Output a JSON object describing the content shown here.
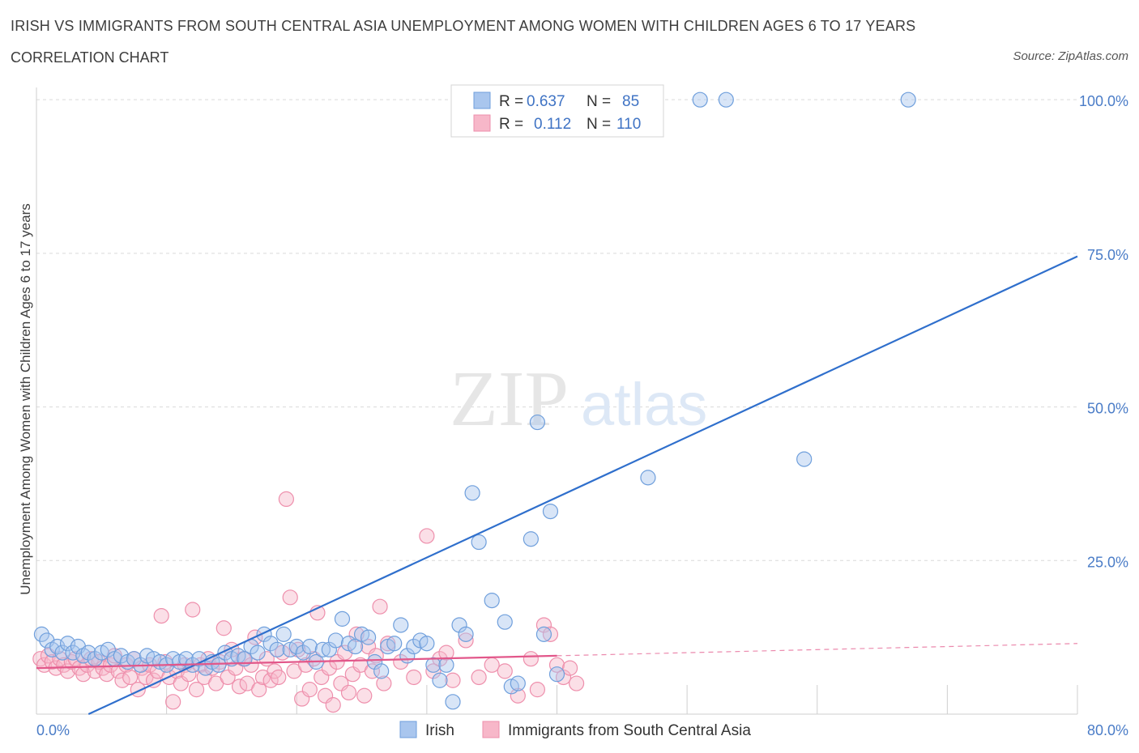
{
  "header": {
    "title": "IRISH VS IMMIGRANTS FROM SOUTH CENTRAL ASIA UNEMPLOYMENT AMONG WOMEN WITH CHILDREN AGES 6 TO 17 YEARS",
    "subtitle": "CORRELATION CHART",
    "source": "Source: ZipAtlas.com"
  },
  "watermark": {
    "zip": "ZIP",
    "atlas": "atlas"
  },
  "legend": {
    "rows": [
      {
        "r_label": "R =",
        "r_value": "0.637",
        "n_label": "N =",
        "n_value": "85"
      },
      {
        "r_label": "R =",
        "r_value": "0.112",
        "n_label": "N =",
        "n_value": "110"
      }
    ]
  },
  "colors": {
    "irish_fill": "#a9c6ee",
    "irish_stroke": "#6f9fdc",
    "irish_line": "#2f6fcc",
    "imm_fill": "#f7b7c9",
    "imm_stroke": "#ee8fac",
    "imm_line": "#e2578a",
    "grid": "#d9d9d9",
    "tick_text": "#4a7cc7"
  },
  "chart_data": {
    "type": "scatter",
    "title": "IRISH VS IMMIGRANTS FROM SOUTH CENTRAL ASIA UNEMPLOYMENT AMONG WOMEN WITH CHILDREN AGES 6 TO 17 YEARS",
    "subtitle": "CORRELATION CHART",
    "xlabel": "",
    "ylabel": "Unemployment Among Women with Children Ages 6 to 17 years",
    "xlim": [
      0,
      80
    ],
    "ylim": [
      0,
      102
    ],
    "x_tick_labels": [
      "0.0%",
      "80.0%"
    ],
    "y_tick_labels": [
      "100.0%",
      "75.0%",
      "50.0%",
      "25.0%"
    ],
    "y_ticks": [
      100,
      75,
      50,
      25
    ],
    "grid": true,
    "legend_position": "bottom",
    "series": [
      {
        "name": "Irish",
        "r": 0.637,
        "n": 85,
        "trend": {
          "x": [
            4,
            80
          ],
          "y": [
            0,
            74.5
          ]
        },
        "points": [
          [
            0.4,
            13
          ],
          [
            0.8,
            12
          ],
          [
            1.2,
            10.5
          ],
          [
            1.6,
            11
          ],
          [
            2,
            10
          ],
          [
            2.4,
            11.5
          ],
          [
            2.8,
            10
          ],
          [
            3.2,
            11
          ],
          [
            3.6,
            9.5
          ],
          [
            4,
            10
          ],
          [
            4.5,
            9
          ],
          [
            5,
            10
          ],
          [
            5.5,
            10.5
          ],
          [
            6,
            9
          ],
          [
            6.5,
            9.5
          ],
          [
            7,
            8.5
          ],
          [
            7.5,
            9
          ],
          [
            8,
            8
          ],
          [
            8.5,
            9.5
          ],
          [
            9,
            9
          ],
          [
            9.5,
            8.5
          ],
          [
            10,
            8
          ],
          [
            10.5,
            9
          ],
          [
            11,
            8.5
          ],
          [
            11.5,
            9
          ],
          [
            12,
            8
          ],
          [
            12.5,
            9
          ],
          [
            13,
            7.5
          ],
          [
            13.5,
            8.5
          ],
          [
            14,
            8
          ],
          [
            14.5,
            10
          ],
          [
            15,
            9
          ],
          [
            15.5,
            9.5
          ],
          [
            16,
            9
          ],
          [
            16.5,
            11
          ],
          [
            17,
            10
          ],
          [
            17.5,
            13
          ],
          [
            18,
            11.5
          ],
          [
            18.5,
            10.5
          ],
          [
            19,
            13
          ],
          [
            19.5,
            10.5
          ],
          [
            20,
            11
          ],
          [
            20.5,
            10
          ],
          [
            21,
            11
          ],
          [
            21.5,
            8.5
          ],
          [
            22,
            10.5
          ],
          [
            22.5,
            10.5
          ],
          [
            23,
            12
          ],
          [
            23.5,
            15.5
          ],
          [
            24,
            11.5
          ],
          [
            24.5,
            11
          ],
          [
            25,
            13
          ],
          [
            25.5,
            12.5
          ],
          [
            26,
            8.5
          ],
          [
            26.5,
            7
          ],
          [
            27,
            11
          ],
          [
            27.5,
            11.5
          ],
          [
            28,
            14.5
          ],
          [
            28.5,
            9.5
          ],
          [
            29,
            11
          ],
          [
            29.5,
            12
          ],
          [
            30,
            11.5
          ],
          [
            30.5,
            8
          ],
          [
            31,
            5.5
          ],
          [
            31.5,
            8
          ],
          [
            32,
            2
          ],
          [
            32.5,
            14.5
          ],
          [
            33,
            13
          ],
          [
            33.5,
            36
          ],
          [
            34,
            28
          ],
          [
            35,
            18.5
          ],
          [
            36,
            15
          ],
          [
            36.5,
            4.5
          ],
          [
            37,
            5
          ],
          [
            38,
            28.5
          ],
          [
            38.5,
            47.5
          ],
          [
            39,
            13
          ],
          [
            39.5,
            33
          ],
          [
            40,
            6.5
          ],
          [
            44.5,
            100
          ],
          [
            47,
            38.5
          ],
          [
            51,
            100
          ],
          [
            53,
            100
          ],
          [
            59,
            41.5
          ],
          [
            67,
            100
          ]
        ]
      },
      {
        "name": "Immigrants from South Central Asia",
        "r": 0.112,
        "n": 110,
        "trend": {
          "x": [
            0,
            40
          ],
          "y": [
            7.5,
            9.5
          ]
        },
        "trend_extension": {
          "x": [
            40,
            80
          ],
          "y": [
            9.5,
            11.5
          ]
        },
        "points": [
          [
            0.3,
            9
          ],
          [
            0.6,
            8
          ],
          [
            0.9,
            9.5
          ],
          [
            1.2,
            8.5
          ],
          [
            1.5,
            7.5
          ],
          [
            1.8,
            9
          ],
          [
            2.1,
            8
          ],
          [
            2.4,
            7
          ],
          [
            2.7,
            8.5
          ],
          [
            3,
            9
          ],
          [
            3.3,
            7.5
          ],
          [
            3.6,
            6.5
          ],
          [
            3.9,
            8
          ],
          [
            4.2,
            9
          ],
          [
            4.5,
            7
          ],
          [
            4.8,
            8.5
          ],
          [
            5.1,
            7.5
          ],
          [
            5.4,
            6.5
          ],
          [
            5.7,
            8
          ],
          [
            6,
            9.5
          ],
          [
            6.3,
            7
          ],
          [
            6.6,
            5.5
          ],
          [
            6.9,
            8
          ],
          [
            7.2,
            6
          ],
          [
            7.5,
            9
          ],
          [
            7.8,
            4
          ],
          [
            8.1,
            7.5
          ],
          [
            8.4,
            6
          ],
          [
            8.7,
            8
          ],
          [
            9,
            5.5
          ],
          [
            9.3,
            7
          ],
          [
            9.6,
            16
          ],
          [
            9.9,
            8.5
          ],
          [
            10.2,
            6
          ],
          [
            10.5,
            2
          ],
          [
            10.8,
            7
          ],
          [
            11.1,
            5
          ],
          [
            11.4,
            8
          ],
          [
            11.7,
            6.5
          ],
          [
            12,
            17
          ],
          [
            12.3,
            4
          ],
          [
            12.6,
            8
          ],
          [
            12.9,
            6
          ],
          [
            13.2,
            9
          ],
          [
            13.5,
            7.5
          ],
          [
            13.8,
            5
          ],
          [
            14.1,
            8.5
          ],
          [
            14.4,
            14
          ],
          [
            14.7,
            6
          ],
          [
            15,
            10.5
          ],
          [
            15.3,
            7.5
          ],
          [
            15.6,
            4.5
          ],
          [
            15.9,
            9
          ],
          [
            16.2,
            5
          ],
          [
            16.5,
            8
          ],
          [
            16.8,
            12.5
          ],
          [
            17.1,
            4
          ],
          [
            17.4,
            6
          ],
          [
            17.7,
            9
          ],
          [
            18,
            5.5
          ],
          [
            18.3,
            7
          ],
          [
            18.6,
            6
          ],
          [
            18.9,
            10
          ],
          [
            19.2,
            35
          ],
          [
            19.5,
            19
          ],
          [
            19.8,
            7
          ],
          [
            20.1,
            10.5
          ],
          [
            20.4,
            2.5
          ],
          [
            20.7,
            8
          ],
          [
            21,
            4
          ],
          [
            21.3,
            9
          ],
          [
            21.6,
            16.5
          ],
          [
            21.9,
            6
          ],
          [
            22.2,
            3
          ],
          [
            22.5,
            7.5
          ],
          [
            22.8,
            1.5
          ],
          [
            23.1,
            8.5
          ],
          [
            23.4,
            5
          ],
          [
            23.7,
            10
          ],
          [
            24,
            3.5
          ],
          [
            24.3,
            6.5
          ],
          [
            24.6,
            13
          ],
          [
            24.9,
            8
          ],
          [
            25.2,
            3
          ],
          [
            25.5,
            11
          ],
          [
            25.8,
            7
          ],
          [
            26.1,
            9.5
          ],
          [
            26.4,
            17.5
          ],
          [
            26.7,
            5
          ],
          [
            27,
            11.5
          ],
          [
            28,
            8.5
          ],
          [
            29,
            6
          ],
          [
            30,
            29
          ],
          [
            30.5,
            7
          ],
          [
            31,
            9
          ],
          [
            31.5,
            10
          ],
          [
            32,
            5.5
          ],
          [
            33,
            12
          ],
          [
            34,
            6
          ],
          [
            35,
            8
          ],
          [
            36,
            7
          ],
          [
            37,
            3
          ],
          [
            38,
            9
          ],
          [
            38.5,
            4
          ],
          [
            39,
            14.5
          ],
          [
            39.5,
            13
          ],
          [
            40,
            8
          ],
          [
            40.5,
            6
          ],
          [
            41,
            7.5
          ],
          [
            41.5,
            5
          ]
        ]
      }
    ]
  },
  "bottom_legend": [
    {
      "name": "Irish"
    },
    {
      "name": "Immigrants from South Central Asia"
    }
  ]
}
